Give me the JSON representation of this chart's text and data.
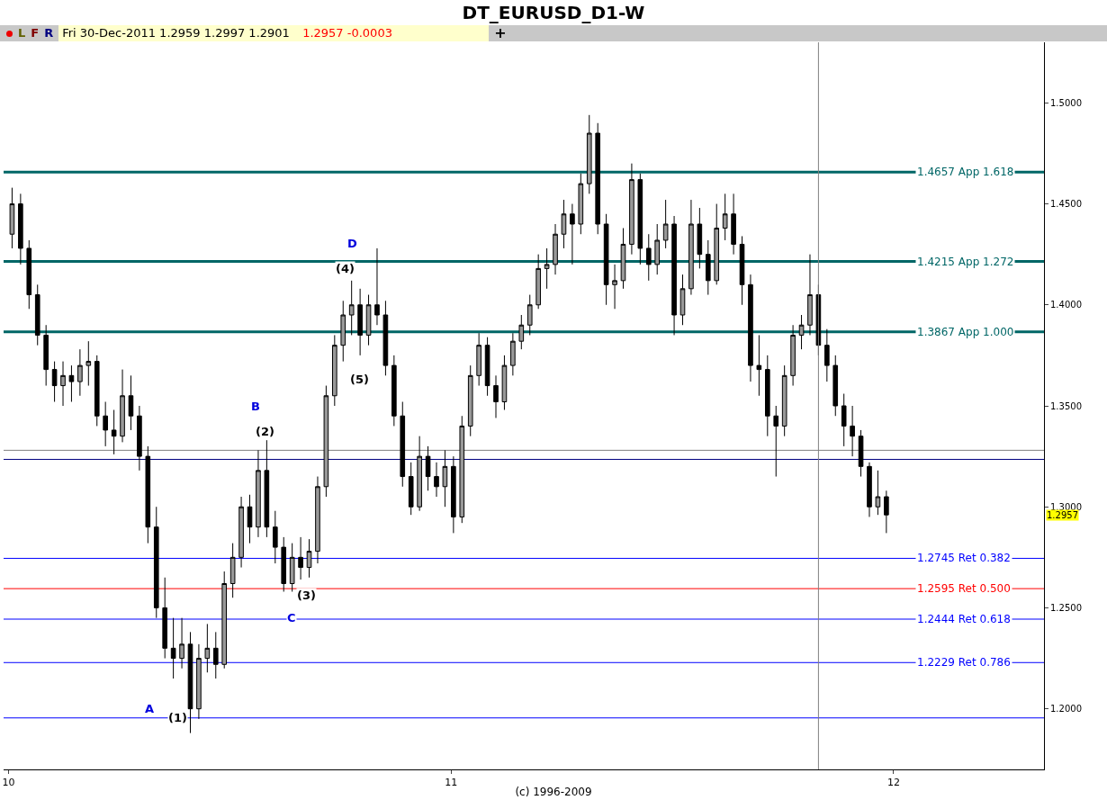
{
  "chart_data": {
    "type": "candlestick",
    "title": "DT_EURUSD_D1-W",
    "annotations": [
      "L",
      "F",
      "R",
      "Fri 30-Dec-2011  1.2959  1.2997  1.2901",
      "1.2957  -0.0003",
      "+",
      "A",
      "(1)",
      "B",
      "(2)",
      "C",
      "(3)",
      "D",
      "(4)",
      "(5)",
      {
        "text": "1.2957",
        "y": 1.2957
      },
      "(c) 1996-2009"
    ],
    "x": [
      "2010-01-04",
      "2010-01-11",
      "2010-01-18",
      "2010-01-25",
      "2010-02-01",
      "2010-02-08",
      "2010-02-15",
      "2010-02-22",
      "2010-03-01",
      "2010-03-08",
      "2010-03-15",
      "2010-03-22",
      "2010-03-29",
      "2010-04-05",
      "2010-04-12",
      "2010-04-19",
      "2010-04-26",
      "2010-05-03",
      "2010-05-10",
      "2010-05-17",
      "2010-05-24",
      "2010-05-31",
      "2010-06-07",
      "2010-06-14",
      "2010-06-21",
      "2010-06-28",
      "2010-07-05",
      "2010-07-12",
      "2010-07-19",
      "2010-07-26",
      "2010-08-02",
      "2010-08-09",
      "2010-08-16",
      "2010-08-23",
      "2010-08-30",
      "2010-09-06",
      "2010-09-13",
      "2010-09-20",
      "2010-09-27",
      "2010-10-04",
      "2010-10-11",
      "2010-10-18",
      "2010-10-25",
      "2010-11-01",
      "2010-11-08",
      "2010-11-15",
      "2010-11-22",
      "2010-11-29",
      "2010-12-06",
      "2010-12-13",
      "2010-12-20",
      "2010-12-27",
      "2011-01-03",
      "2011-01-10",
      "2011-01-17",
      "2011-01-24",
      "2011-01-31",
      "2011-02-07",
      "2011-02-14",
      "2011-02-21",
      "2011-02-28",
      "2011-03-07",
      "2011-03-14",
      "2011-03-21",
      "2011-03-28",
      "2011-04-04",
      "2011-04-11",
      "2011-04-18",
      "2011-04-25",
      "2011-05-02",
      "2011-05-09",
      "2011-05-16",
      "2011-05-23",
      "2011-05-30",
      "2011-06-06",
      "2011-06-13",
      "2011-06-20",
      "2011-06-27",
      "2011-07-04",
      "2011-07-11",
      "2011-07-18",
      "2011-07-25",
      "2011-08-01",
      "2011-08-08",
      "2011-08-15",
      "2011-08-22",
      "2011-08-29",
      "2011-09-05",
      "2011-09-12",
      "2011-09-19",
      "2011-09-26",
      "2011-10-03",
      "2011-10-10",
      "2011-10-17",
      "2011-10-24",
      "2011-10-31",
      "2011-11-07",
      "2011-11-14",
      "2011-11-21",
      "2011-11-28",
      "2011-12-05",
      "2011-12-12",
      "2011-12-19",
      "2011-12-26"
    ],
    "ohlc": [
      [
        1.435,
        1.458,
        1.428,
        1.45
      ],
      [
        1.45,
        1.455,
        1.42,
        1.428
      ],
      [
        1.428,
        1.432,
        1.398,
        1.405
      ],
      [
        1.405,
        1.41,
        1.38,
        1.385
      ],
      [
        1.385,
        1.39,
        1.36,
        1.368
      ],
      [
        1.368,
        1.372,
        1.352,
        1.36
      ],
      [
        1.36,
        1.372,
        1.35,
        1.365
      ],
      [
        1.365,
        1.37,
        1.352,
        1.362
      ],
      [
        1.362,
        1.378,
        1.355,
        1.37
      ],
      [
        1.37,
        1.382,
        1.36,
        1.372
      ],
      [
        1.372,
        1.375,
        1.34,
        1.345
      ],
      [
        1.345,
        1.352,
        1.33,
        1.338
      ],
      [
        1.338,
        1.348,
        1.326,
        1.335
      ],
      [
        1.335,
        1.368,
        1.332,
        1.355
      ],
      [
        1.355,
        1.365,
        1.338,
        1.345
      ],
      [
        1.345,
        1.35,
        1.318,
        1.325
      ],
      [
        1.325,
        1.33,
        1.282,
        1.29
      ],
      [
        1.29,
        1.3,
        1.245,
        1.25
      ],
      [
        1.25,
        1.265,
        1.225,
        1.23
      ],
      [
        1.23,
        1.245,
        1.215,
        1.225
      ],
      [
        1.225,
        1.245,
        1.22,
        1.232
      ],
      [
        1.232,
        1.238,
        1.188,
        1.2
      ],
      [
        1.2,
        1.232,
        1.195,
        1.225
      ],
      [
        1.225,
        1.242,
        1.218,
        1.23
      ],
      [
        1.23,
        1.238,
        1.215,
        1.222
      ],
      [
        1.222,
        1.268,
        1.22,
        1.262
      ],
      [
        1.262,
        1.282,
        1.255,
        1.275
      ],
      [
        1.275,
        1.305,
        1.27,
        1.3
      ],
      [
        1.3,
        1.306,
        1.282,
        1.29
      ],
      [
        1.29,
        1.328,
        1.285,
        1.318
      ],
      [
        1.318,
        1.333,
        1.285,
        1.29
      ],
      [
        1.29,
        1.298,
        1.272,
        1.28
      ],
      [
        1.28,
        1.285,
        1.258,
        1.262
      ],
      [
        1.262,
        1.282,
        1.258,
        1.275
      ],
      [
        1.275,
        1.285,
        1.264,
        1.27
      ],
      [
        1.27,
        1.284,
        1.265,
        1.278
      ],
      [
        1.278,
        1.315,
        1.272,
        1.31
      ],
      [
        1.31,
        1.36,
        1.305,
        1.355
      ],
      [
        1.355,
        1.385,
        1.35,
        1.38
      ],
      [
        1.38,
        1.402,
        1.372,
        1.395
      ],
      [
        1.395,
        1.412,
        1.385,
        1.4
      ],
      [
        1.4,
        1.408,
        1.375,
        1.385
      ],
      [
        1.385,
        1.405,
        1.38,
        1.4
      ],
      [
        1.4,
        1.428,
        1.39,
        1.395
      ],
      [
        1.395,
        1.402,
        1.365,
        1.37
      ],
      [
        1.37,
        1.375,
        1.34,
        1.345
      ],
      [
        1.345,
        1.352,
        1.31,
        1.315
      ],
      [
        1.315,
        1.322,
        1.296,
        1.3
      ],
      [
        1.3,
        1.335,
        1.298,
        1.325
      ],
      [
        1.325,
        1.33,
        1.308,
        1.315
      ],
      [
        1.315,
        1.322,
        1.305,
        1.31
      ],
      [
        1.31,
        1.328,
        1.3,
        1.32
      ],
      [
        1.32,
        1.325,
        1.287,
        1.295
      ],
      [
        1.295,
        1.345,
        1.292,
        1.34
      ],
      [
        1.34,
        1.37,
        1.335,
        1.365
      ],
      [
        1.365,
        1.386,
        1.36,
        1.38
      ],
      [
        1.38,
        1.384,
        1.355,
        1.36
      ],
      [
        1.36,
        1.365,
        1.344,
        1.352
      ],
      [
        1.352,
        1.375,
        1.348,
        1.37
      ],
      [
        1.37,
        1.386,
        1.365,
        1.382
      ],
      [
        1.382,
        1.395,
        1.378,
        1.39
      ],
      [
        1.39,
        1.405,
        1.385,
        1.4
      ],
      [
        1.4,
        1.425,
        1.398,
        1.418
      ],
      [
        1.418,
        1.428,
        1.408,
        1.42
      ],
      [
        1.42,
        1.44,
        1.415,
        1.435
      ],
      [
        1.435,
        1.452,
        1.428,
        1.445
      ],
      [
        1.445,
        1.45,
        1.42,
        1.44
      ],
      [
        1.44,
        1.465,
        1.435,
        1.46
      ],
      [
        1.46,
        1.494,
        1.455,
        1.485
      ],
      [
        1.485,
        1.49,
        1.435,
        1.44
      ],
      [
        1.44,
        1.445,
        1.4,
        1.41
      ],
      [
        1.41,
        1.42,
        1.398,
        1.412
      ],
      [
        1.412,
        1.438,
        1.408,
        1.43
      ],
      [
        1.43,
        1.47,
        1.425,
        1.462
      ],
      [
        1.462,
        1.465,
        1.42,
        1.428
      ],
      [
        1.428,
        1.435,
        1.412,
        1.42
      ],
      [
        1.42,
        1.44,
        1.415,
        1.432
      ],
      [
        1.432,
        1.452,
        1.428,
        1.44
      ],
      [
        1.44,
        1.444,
        1.385,
        1.395
      ],
      [
        1.395,
        1.415,
        1.39,
        1.408
      ],
      [
        1.408,
        1.452,
        1.405,
        1.44
      ],
      [
        1.44,
        1.448,
        1.418,
        1.425
      ],
      [
        1.425,
        1.432,
        1.405,
        1.412
      ],
      [
        1.412,
        1.45,
        1.41,
        1.438
      ],
      [
        1.438,
        1.455,
        1.432,
        1.445
      ],
      [
        1.445,
        1.455,
        1.425,
        1.43
      ],
      [
        1.43,
        1.434,
        1.4,
        1.41
      ],
      [
        1.41,
        1.415,
        1.362,
        1.37
      ],
      [
        1.37,
        1.385,
        1.355,
        1.368
      ],
      [
        1.368,
        1.375,
        1.335,
        1.345
      ],
      [
        1.345,
        1.35,
        1.315,
        1.34
      ],
      [
        1.34,
        1.37,
        1.335,
        1.365
      ],
      [
        1.365,
        1.39,
        1.36,
        1.385
      ],
      [
        1.385,
        1.395,
        1.378,
        1.39
      ],
      [
        1.39,
        1.425,
        1.385,
        1.405
      ],
      [
        1.405,
        1.41,
        1.375,
        1.38
      ],
      [
        1.38,
        1.388,
        1.362,
        1.37
      ],
      [
        1.37,
        1.375,
        1.345,
        1.35
      ],
      [
        1.35,
        1.356,
        1.33,
        1.34
      ],
      [
        1.34,
        1.35,
        1.325,
        1.335
      ],
      [
        1.335,
        1.338,
        1.315,
        1.32
      ],
      [
        1.32,
        1.322,
        1.295,
        1.3
      ],
      [
        1.3,
        1.318,
        1.296,
        1.305
      ],
      [
        1.305,
        1.308,
        1.287,
        1.296
      ]
    ],
    "xlim": [
      "2009-12-28",
      "2012-05-04"
    ],
    "ylim": [
      1.17,
      1.53
    ],
    "xticks": [
      {
        "value": "2010-01-01",
        "label": "10"
      },
      {
        "value": "2011-01-01",
        "label": "11"
      },
      {
        "value": "2012-01-01",
        "label": "12"
      }
    ],
    "yticks": [
      {
        "value": 1.2,
        "label": "1.2000"
      },
      {
        "value": 1.25,
        "label": "1.2500"
      },
      {
        "value": 1.3,
        "label": "1.3000"
      },
      {
        "value": 1.35,
        "label": "1.3500"
      },
      {
        "value": 1.4,
        "label": "1.4000"
      },
      {
        "value": 1.45,
        "label": "1.4500"
      },
      {
        "value": 1.5,
        "label": "1.5000"
      }
    ],
    "ref_lines": [
      {
        "axis": "y",
        "value": 1.4657,
        "label": "1.4657 App 1.618",
        "color": "#006666"
      },
      {
        "axis": "y",
        "value": 1.4215,
        "label": "1.4215 App 1.272",
        "color": "#006666"
      },
      {
        "axis": "y",
        "value": 1.3867,
        "label": "1.3867 App 1.000",
        "color": "#006666"
      },
      {
        "axis": "y",
        "value": 1.2745,
        "label": "1.2745 Ret 0.382",
        "color": "#0000ff"
      },
      {
        "axis": "y",
        "value": 1.2595,
        "label": "1.2595 Ret 0.500",
        "color": "#ff0000"
      },
      {
        "axis": "y",
        "value": 1.2444,
        "label": "1.2444 Ret 0.618",
        "color": "#0000ff"
      },
      {
        "axis": "y",
        "value": 1.2229,
        "label": "1.2229 Ret 0.786",
        "color": "#0000ff"
      },
      {
        "axis": "y",
        "value": 1.1955,
        "label": null,
        "color": "#0000ff"
      },
      {
        "axis": "y",
        "value": 1.3235,
        "label": null,
        "color": "#000080"
      },
      {
        "axis": "y",
        "value": 1.328,
        "label": null,
        "color": "#808080"
      },
      {
        "axis": "x",
        "value": "2011-10-31",
        "label": null,
        "color": "#808080"
      }
    ]
  }
}
